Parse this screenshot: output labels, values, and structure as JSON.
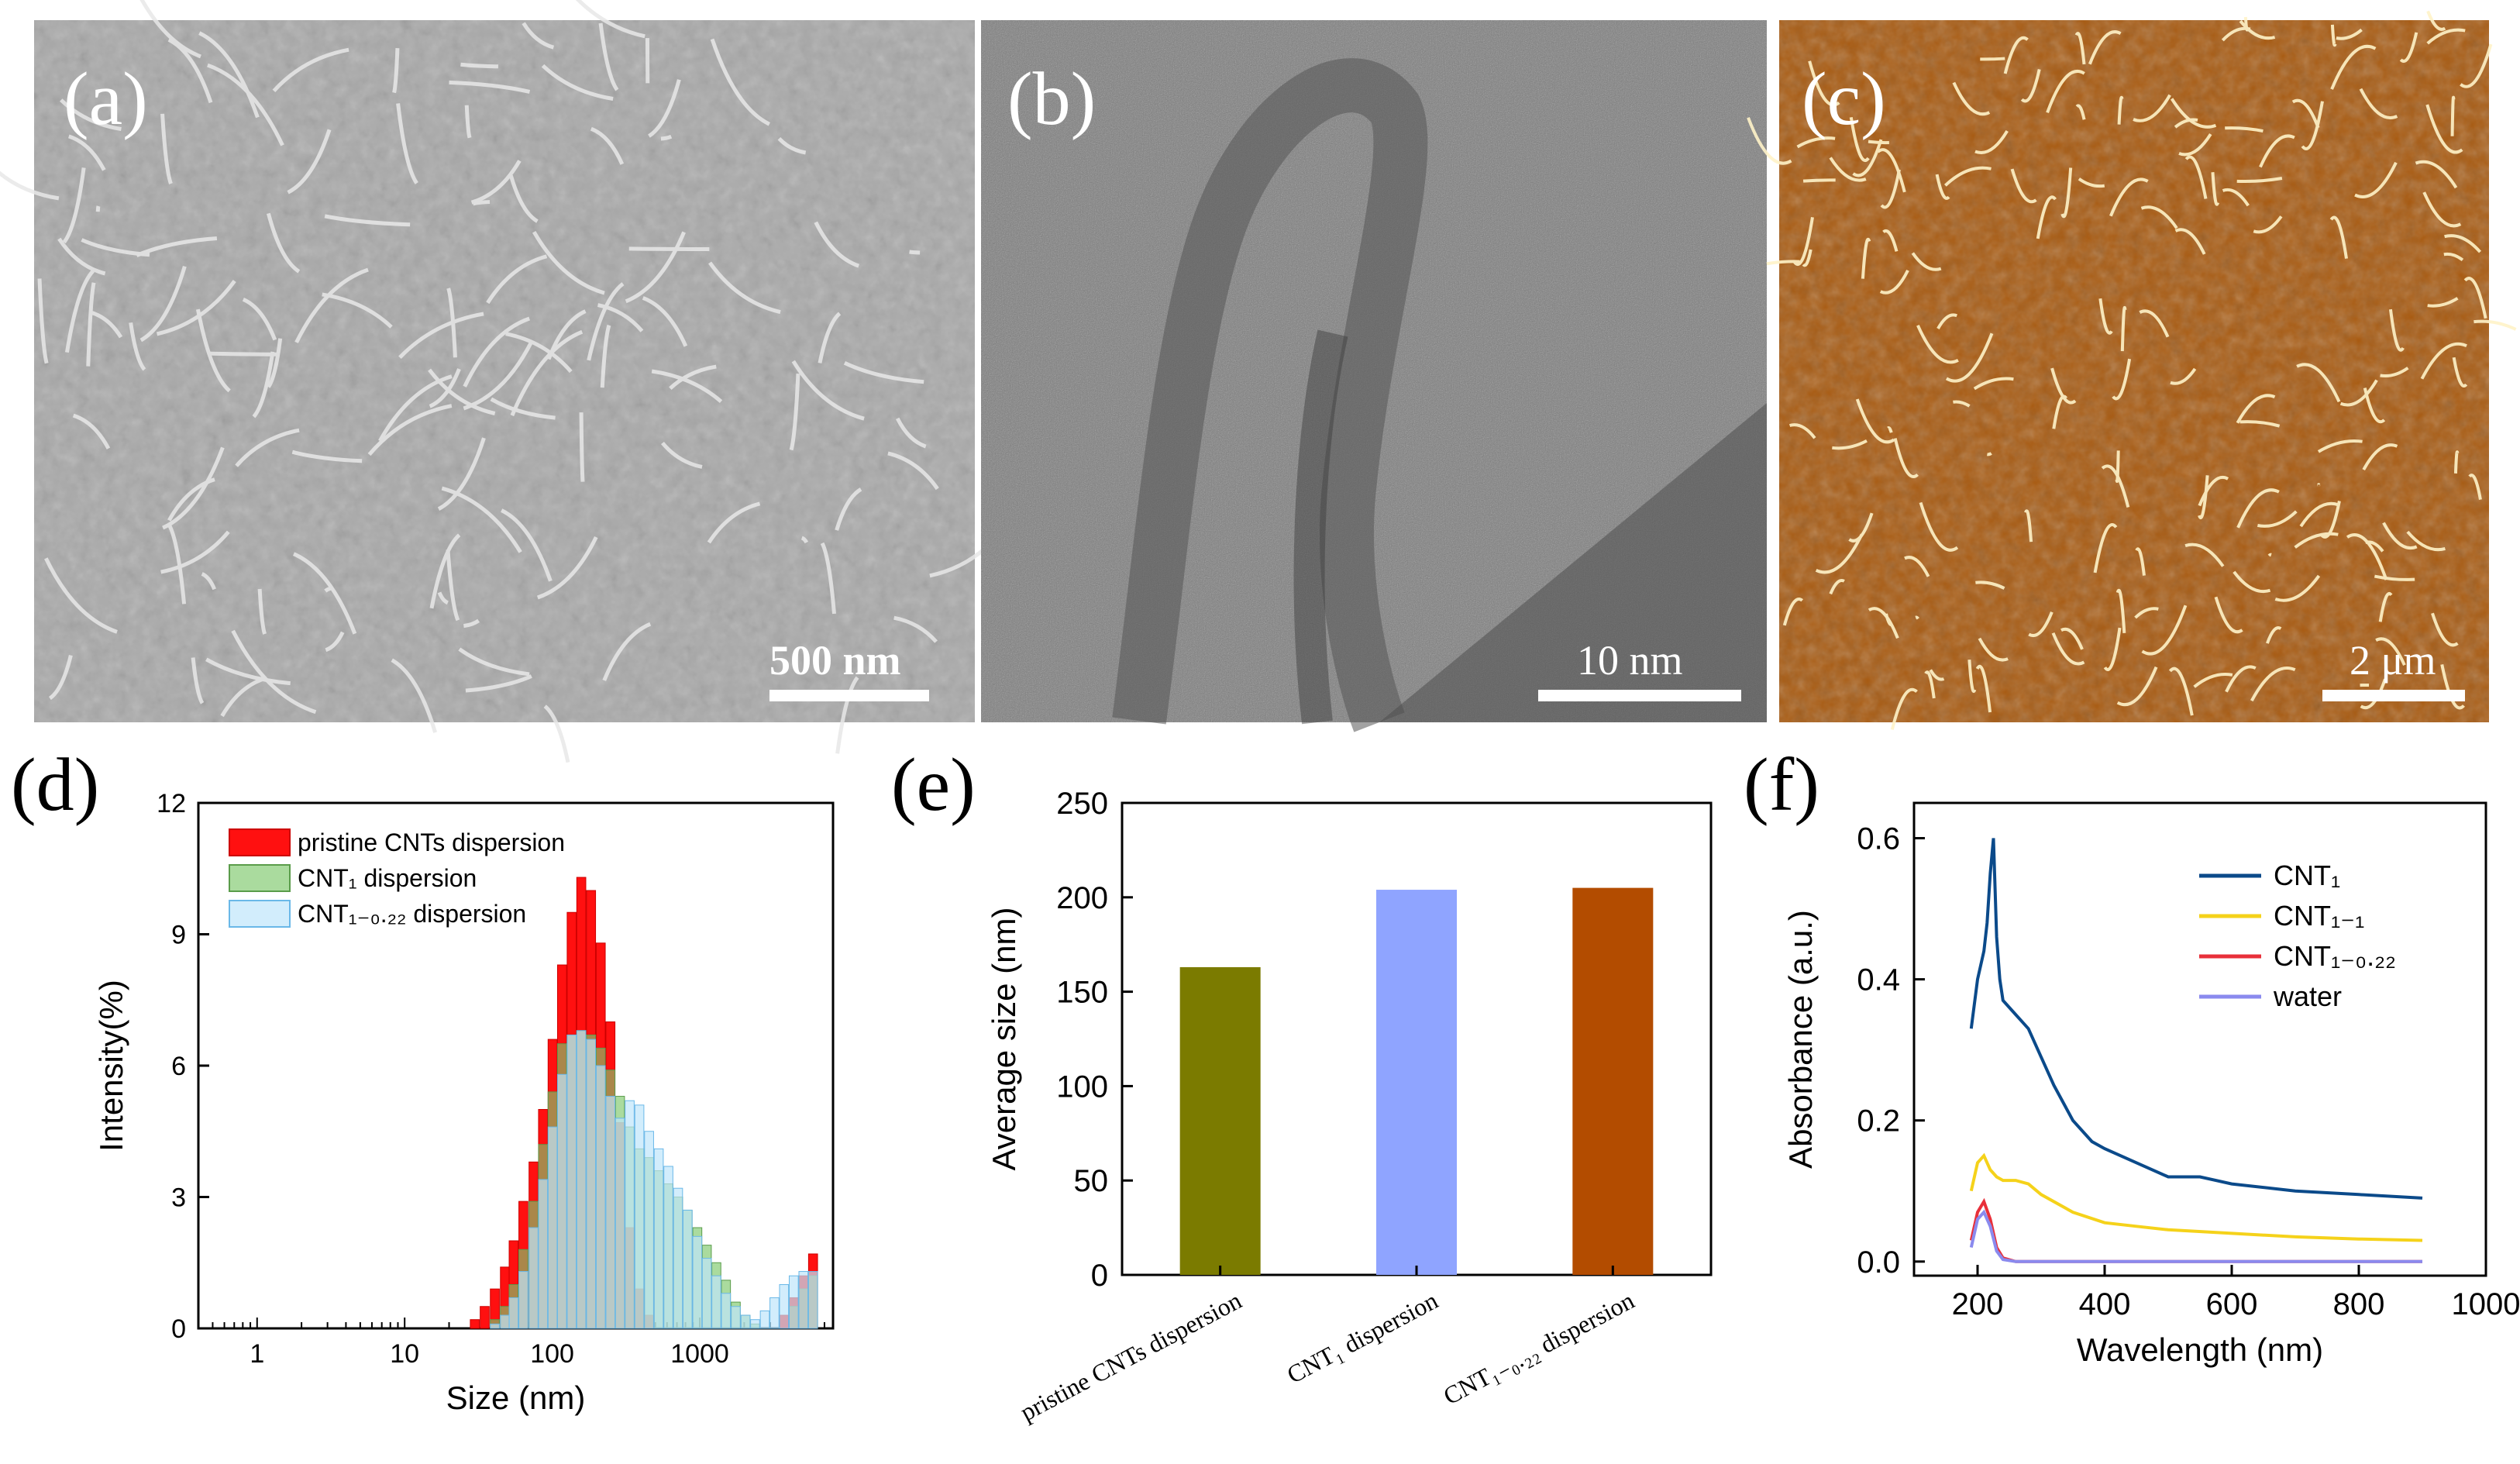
{
  "panels": {
    "a": {
      "label": "(a)",
      "scale_bar": "500 nm"
    },
    "b": {
      "label": "(b)",
      "scale_bar": "10 nm"
    },
    "c": {
      "label": "(c)",
      "scale_bar": "2 μm"
    },
    "d": {
      "label": "(d)"
    },
    "e": {
      "label": "(e)"
    },
    "f": {
      "label": "(f)"
    }
  },
  "colors": {
    "sem_bg": "#a8a8a8",
    "tem_bg": "#7a7a7a",
    "afm_bg": "#a85a10",
    "pristine": "#ff1010",
    "cnt1": "#7cc86a",
    "cnt1_022": "#bfe6fb",
    "bar_pristine": "#7b7b00",
    "bar_cnt1": "#8fa4ff",
    "bar_cnt1_022": "#b34c00",
    "f_cnt1": "#0b4a8a",
    "f_cnt1_1": "#f5d21a",
    "f_cnt1_022": "#e8303a",
    "f_water": "#8a8aee"
  },
  "chart_data": [
    {
      "id": "d",
      "type": "bar",
      "xlabel": "Size (nm)",
      "ylabel": "Intensity(%)",
      "xscale": "log",
      "xlim": [
        0.4,
        8000
      ],
      "ylim": [
        0,
        12
      ],
      "xticks": [
        "1",
        "10",
        "100",
        "1000"
      ],
      "yticks": [
        "0",
        "3",
        "6",
        "9",
        "12"
      ],
      "legend_position": "top-left",
      "series": [
        {
          "name": "pristine CNTs dispersion",
          "x": [
            30,
            35,
            41,
            48,
            55,
            64,
            75,
            87,
            101,
            117,
            136,
            158,
            184,
            214,
            249,
            289,
            336,
            391,
            455,
            529,
            615,
            715,
            830,
            966,
            1120,
            1300,
            1510,
            1760,
            2050,
            2380,
            2770,
            3220,
            3740,
            4350,
            5060,
            5880
          ],
          "values": [
            0.2,
            0.5,
            0.9,
            1.4,
            2.0,
            2.9,
            3.8,
            5.0,
            6.6,
            8.3,
            9.5,
            10.3,
            10.0,
            8.8,
            7.0,
            4.7,
            2.3,
            0.9,
            0.3,
            0.0,
            0,
            0,
            0,
            0,
            0,
            0,
            0,
            0,
            0,
            0,
            0,
            0,
            0.3,
            0.7,
            1.2,
            1.7
          ]
        },
        {
          "name": "CNT₁ dispersion",
          "x": [
            30,
            35,
            41,
            48,
            55,
            64,
            75,
            87,
            101,
            117,
            136,
            158,
            184,
            214,
            249,
            289,
            336,
            391,
            455,
            529,
            615,
            715,
            830,
            966,
            1120,
            1300,
            1510,
            1760,
            2050,
            2380,
            2770,
            3220,
            3740,
            4350,
            5060,
            5880
          ],
          "values": [
            0,
            0,
            0.2,
            0.5,
            1.0,
            1.8,
            2.9,
            4.2,
            5.4,
            6.5,
            6.7,
            6.8,
            6.7,
            6.4,
            5.9,
            5.3,
            4.6,
            4.1,
            3.9,
            3.6,
            3.3,
            3.0,
            2.7,
            2.3,
            1.9,
            1.5,
            1.1,
            0.6,
            0.3,
            0.1,
            0,
            0,
            0,
            0.5,
            0.9,
            1.2
          ]
        },
        {
          "name": "CNT₁₋₀.₂₂ dispersion",
          "x": [
            30,
            35,
            41,
            48,
            55,
            64,
            75,
            87,
            101,
            117,
            136,
            158,
            184,
            214,
            249,
            289,
            336,
            391,
            455,
            529,
            615,
            715,
            830,
            966,
            1120,
            1300,
            1510,
            1760,
            2050,
            2380,
            2770,
            3220,
            3740,
            4350,
            5060,
            5880
          ],
          "values": [
            0,
            0,
            0.1,
            0.3,
            0.7,
            1.3,
            2.3,
            3.4,
            4.6,
            5.8,
            6.7,
            6.8,
            6.6,
            6.0,
            5.3,
            4.8,
            5.2,
            5.1,
            4.5,
            4.1,
            3.7,
            3.2,
            2.7,
            2.1,
            1.6,
            1.2,
            0.8,
            0.5,
            0.3,
            0.2,
            0.4,
            0.7,
            1.0,
            1.2,
            1.3,
            1.3
          ]
        }
      ],
      "series_colors": [
        "#ff1010",
        "#7cc86a",
        "#bfe6fb"
      ]
    },
    {
      "id": "e",
      "type": "bar",
      "ylabel": "Average size (nm)",
      "ylim": [
        0,
        250
      ],
      "yticks": [
        "0",
        "50",
        "100",
        "150",
        "200",
        "250"
      ],
      "categories": [
        "pristine CNTs dispersion",
        "CNT₁ dispersion",
        "CNT₁₋₀.₂₂ dispersion"
      ],
      "values": [
        163,
        204,
        205
      ],
      "colors": [
        "#7b7b00",
        "#8fa4ff",
        "#b34c00"
      ]
    },
    {
      "id": "f",
      "type": "line",
      "xlabel": "Wavelength (nm)",
      "ylabel": "Absorbance (a.u.)",
      "xlim": [
        100,
        1000
      ],
      "ylim": [
        -0.02,
        0.65
      ],
      "xticks": [
        "200",
        "400",
        "600",
        "800",
        "1000"
      ],
      "yticks": [
        "0.0",
        "0.2",
        "0.4",
        "0.6"
      ],
      "legend_position": "top-right",
      "series": [
        {
          "name": "CNT₁",
          "x": [
            190,
            200,
            210,
            215,
            220,
            225,
            230,
            235,
            240,
            250,
            260,
            270,
            280,
            300,
            320,
            350,
            380,
            400,
            450,
            500,
            550,
            600,
            700,
            800,
            900
          ],
          "values": [
            0.33,
            0.4,
            0.44,
            0.48,
            0.55,
            0.6,
            0.46,
            0.4,
            0.37,
            0.36,
            0.35,
            0.34,
            0.33,
            0.29,
            0.25,
            0.2,
            0.17,
            0.16,
            0.14,
            0.12,
            0.12,
            0.11,
            0.1,
            0.095,
            0.09
          ]
        },
        {
          "name": "CNT₁₋₁",
          "x": [
            190,
            200,
            210,
            220,
            230,
            240,
            260,
            280,
            300,
            350,
            400,
            450,
            500,
            600,
            700,
            800,
            900
          ],
          "values": [
            0.1,
            0.14,
            0.15,
            0.13,
            0.12,
            0.115,
            0.115,
            0.11,
            0.095,
            0.07,
            0.055,
            0.05,
            0.045,
            0.04,
            0.035,
            0.032,
            0.03
          ]
        },
        {
          "name": "CNT₁₋₀.₂₂",
          "x": [
            190,
            200,
            210,
            220,
            230,
            240,
            260,
            300,
            400,
            500,
            600,
            700,
            800,
            900
          ],
          "values": [
            0.03,
            0.07,
            0.085,
            0.06,
            0.02,
            0.005,
            0.0,
            0.0,
            0.0,
            0.0,
            0.0,
            0.0,
            0.0,
            0.0
          ]
        },
        {
          "name": "water",
          "x": [
            190,
            200,
            210,
            220,
            230,
            240,
            260,
            300,
            400,
            500,
            600,
            700,
            800,
            900
          ],
          "values": [
            0.02,
            0.06,
            0.07,
            0.05,
            0.015,
            0.003,
            0.0,
            0.0,
            0.0,
            0.0,
            0.0,
            0.0,
            0.0,
            0.0
          ]
        }
      ],
      "series_colors": [
        "#0b4a8a",
        "#f5d21a",
        "#e8303a",
        "#8a8aee"
      ]
    }
  ]
}
